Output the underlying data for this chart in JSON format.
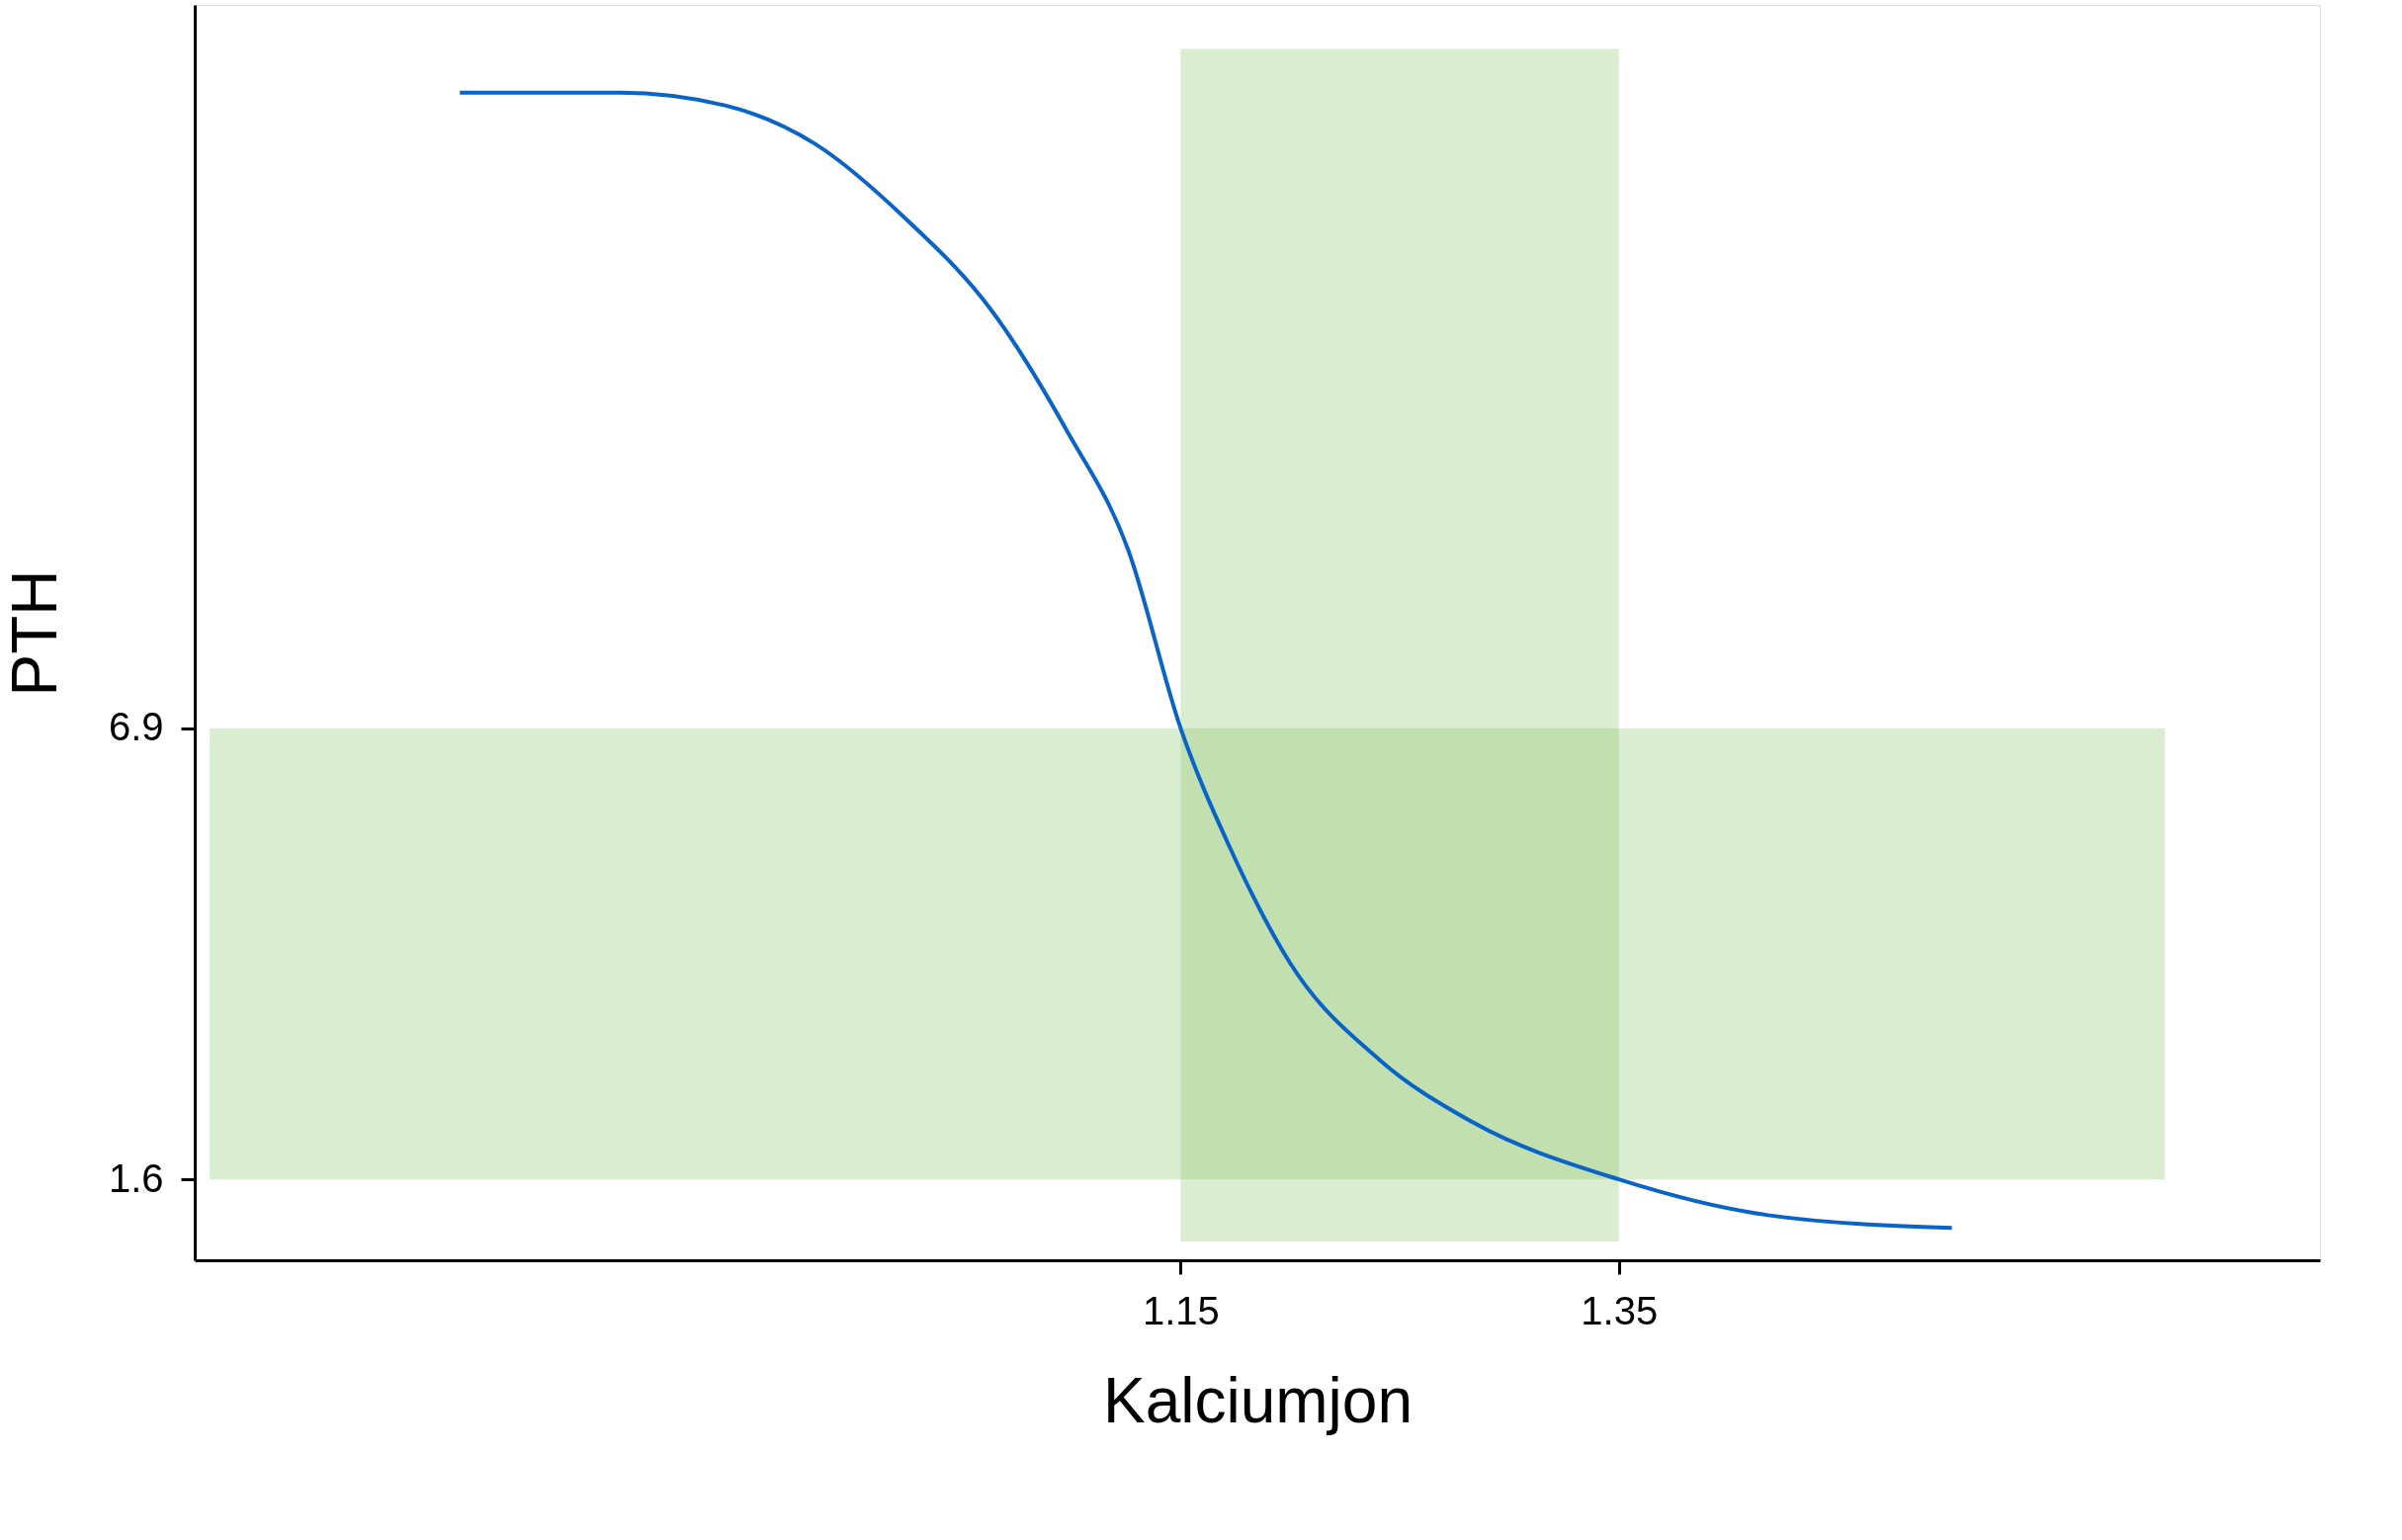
{
  "chart_data": {
    "type": "line",
    "xlabel": "Kalciumjon",
    "ylabel": "PTH",
    "series": [
      {
        "color": "#0a64c8",
        "x": [
          0.821,
          0.894,
          0.942,
          0.983,
          1.024,
          1.064,
          1.098,
          1.126,
          1.15,
          1.173,
          1.2,
          1.241,
          1.282,
          1.35,
          1.418,
          1.502
        ],
        "values": [
          14.37,
          14.37,
          14.22,
          13.77,
          12.9,
          11.8,
          10.4,
          9.0,
          6.9,
          5.47,
          4.14,
          3.0,
          2.29,
          1.6,
          1.18,
          1.03
        ]
      }
    ],
    "xlim": [
      0.7,
      1.67
    ],
    "ylim": [
      0.65,
      15.4
    ],
    "xticks": [
      1.15,
      1.35
    ],
    "yticks": [
      1.6,
      6.9
    ],
    "bands": [
      {
        "axis": "x",
        "from": 1.15,
        "to": 1.35,
        "color": "#88c563"
      },
      {
        "axis": "y",
        "from": 1.6,
        "to": 6.9,
        "color": "#88c563"
      }
    ],
    "grid": false,
    "marker": "none",
    "line_style": "solid"
  }
}
